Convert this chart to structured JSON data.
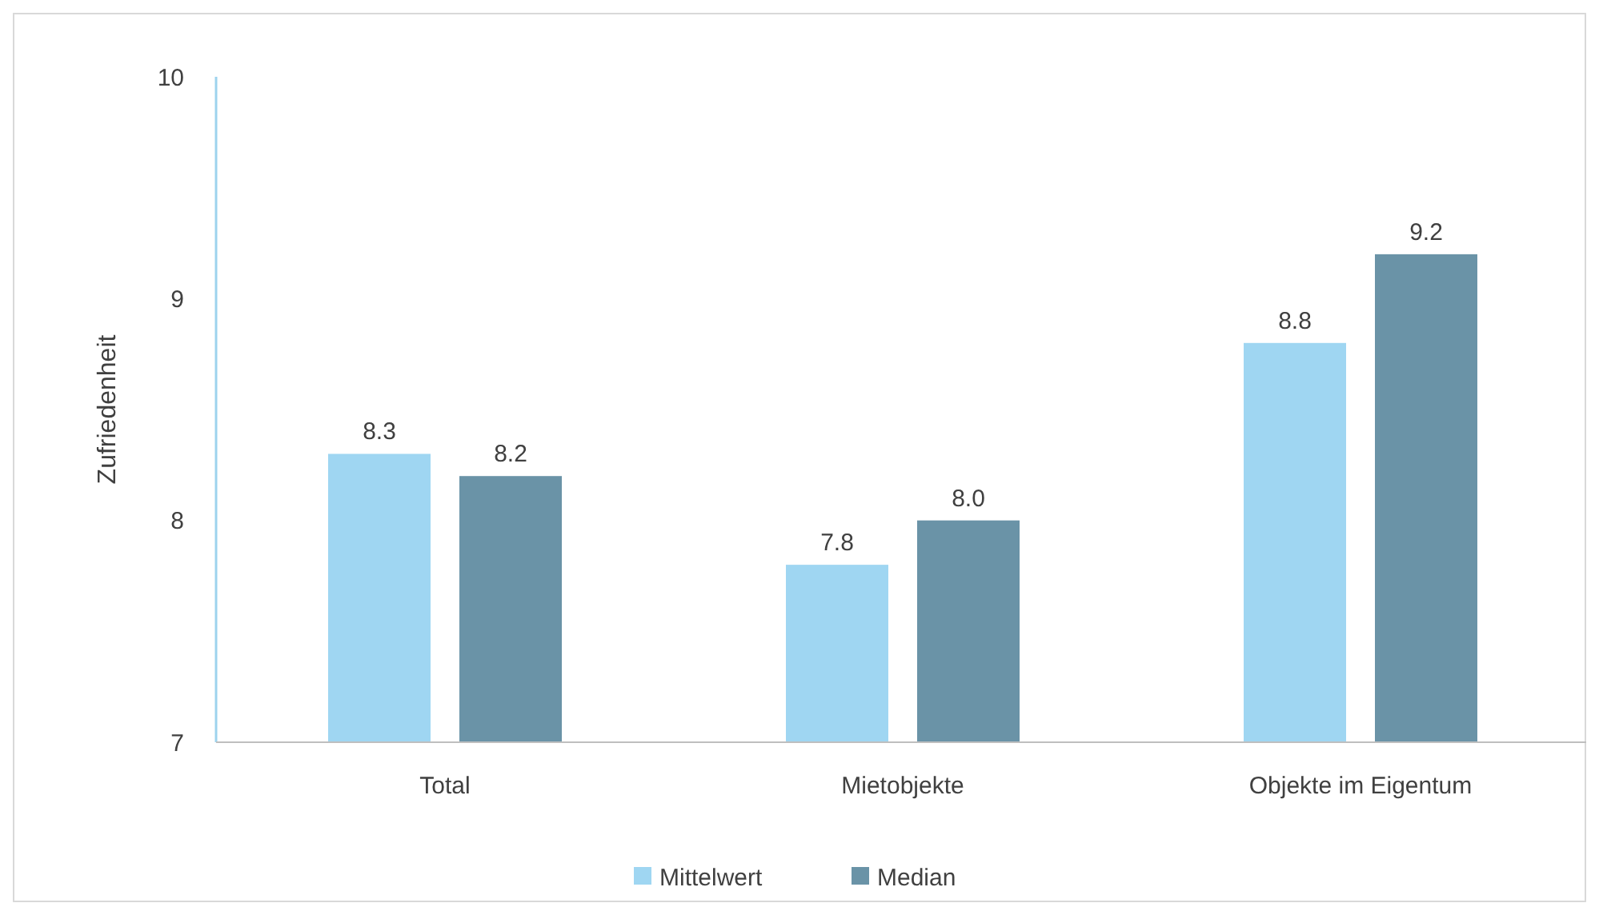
{
  "chart_data": {
    "type": "bar",
    "ylabel": "Zufriedenheit",
    "categories": [
      "Total",
      "Mietobjekte",
      "Objekte im Eigentum"
    ],
    "series": [
      {
        "name": "Mittelwert",
        "color": "#9fd6f2",
        "values": [
          8.3,
          7.8,
          8.8
        ],
        "value_labels": [
          "8.3",
          "7.8",
          "8.8"
        ]
      },
      {
        "name": "Median",
        "color": "#6a93a7",
        "values": [
          8.2,
          8.0,
          9.2
        ],
        "value_labels": [
          "8.2",
          "8.0",
          "9.2"
        ]
      }
    ],
    "ylim": [
      7,
      10
    ],
    "yticks": [
      7,
      8,
      9,
      10
    ],
    "grid": false,
    "legend": "bottom"
  }
}
